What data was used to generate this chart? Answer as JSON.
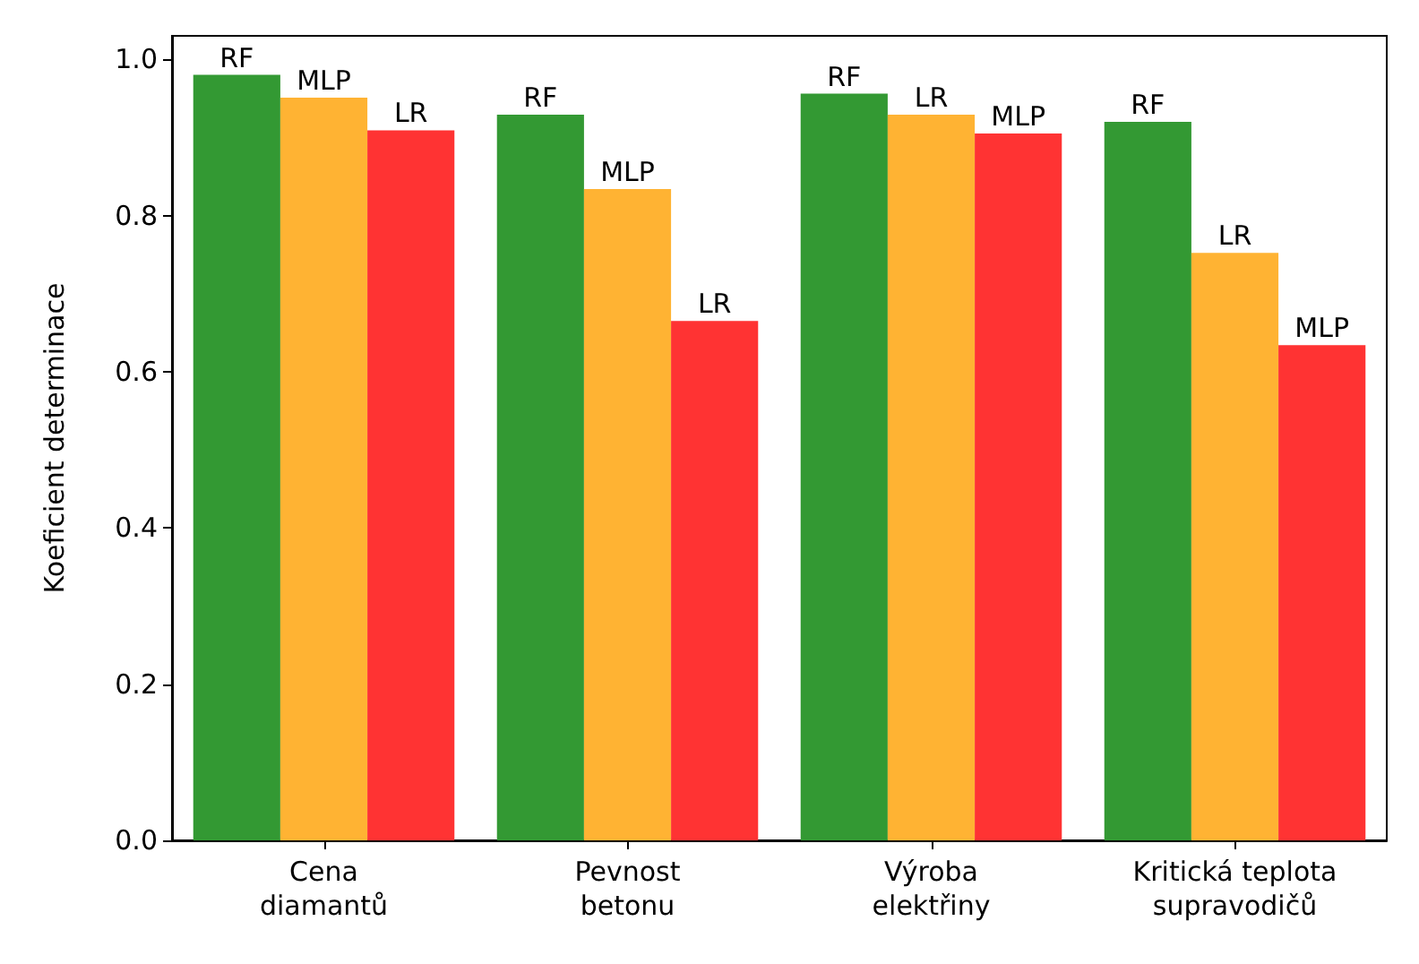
{
  "chart_data": {
    "type": "bar",
    "ylabel": "Koeficient determinace",
    "categories": [
      "Cena\ndiamantů",
      "Pevnost\nbetonu",
      "Výroba\nelektřiny",
      "Kritická teplota\nsupravodičů"
    ],
    "series": [
      {
        "color": "#339933",
        "values": [
          0.98,
          0.929,
          0.956,
          0.92
        ],
        "value_labels": [
          "RF",
          "RF",
          "RF",
          "RF"
        ]
      },
      {
        "color": "#ffb333",
        "values": [
          0.951,
          0.834,
          0.929,
          0.752
        ],
        "value_labels": [
          "MLP",
          "MLP",
          "LR",
          "LR"
        ]
      },
      {
        "color": "#ff3333",
        "values": [
          0.909,
          0.665,
          0.905,
          0.634
        ],
        "value_labels": [
          "LR",
          "LR",
          "MLP",
          "MLP"
        ]
      }
    ],
    "ylim": [
      0,
      1.03
    ],
    "yticks": [
      {
        "value": 0,
        "label": "0.0"
      },
      {
        "value": 0.2,
        "label": "0.2"
      },
      {
        "value": 0.4,
        "label": "0.4"
      },
      {
        "value": 0.6,
        "label": "0.6"
      },
      {
        "value": 0.8,
        "label": "0.8"
      },
      {
        "value": 1,
        "label": "1.0"
      }
    ],
    "grid": false
  }
}
